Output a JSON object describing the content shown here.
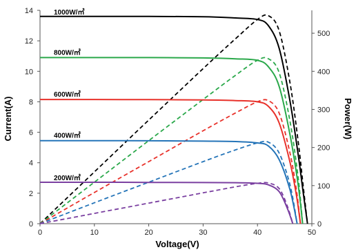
{
  "chart_data": {
    "type": "line",
    "xlabel": "Voltage(V)",
    "ylabel": "Current(A)",
    "y2label": "Power(W)",
    "xlim": [
      0,
      50
    ],
    "ylim": [
      0,
      14
    ],
    "y2lim": [
      0,
      560
    ],
    "xticks": [
      "0",
      "10",
      "20",
      "30",
      "40",
      "50"
    ],
    "yticks": [
      "0",
      "2",
      "4",
      "6",
      "8",
      "10",
      "12",
      "14"
    ],
    "y2ticks": [
      "0",
      "100",
      "200",
      "300",
      "400",
      "500"
    ],
    "grid": false,
    "legend": "inline labels on current curves",
    "series": [
      {
        "name": "1000W/㎡",
        "color": "#000000",
        "current": {
          "x": [
            0,
            10,
            20,
            30,
            36,
            40,
            42,
            44,
            46,
            47.5,
            48.5,
            49.2
          ],
          "y": [
            13.6,
            13.6,
            13.6,
            13.58,
            13.5,
            13.4,
            13.0,
            11.5,
            8.0,
            4.5,
            1.8,
            0
          ]
        },
        "power": {
          "x": [
            0,
            10,
            20,
            30,
            36,
            40,
            42,
            44,
            46,
            47.5,
            48.5,
            49.2
          ],
          "y": [
            0,
            136,
            272,
            407,
            486,
            536,
            546,
            506,
            368,
            214,
            87,
            0
          ]
        }
      },
      {
        "name": "800W/㎡",
        "color": "#2aa84a",
        "current": {
          "x": [
            0,
            10,
            20,
            30,
            36,
            40,
            42,
            44,
            46,
            47.5,
            48.3
          ],
          "y": [
            10.9,
            10.9,
            10.9,
            10.88,
            10.82,
            10.72,
            10.3,
            9.0,
            5.8,
            2.5,
            0
          ]
        },
        "power": {
          "x": [
            0,
            10,
            20,
            30,
            36,
            40,
            42,
            44,
            46,
            47.5,
            48.3
          ],
          "y": [
            0,
            109,
            218,
            326,
            390,
            429,
            433,
            396,
            267,
            119,
            0
          ]
        }
      },
      {
        "name": "600W/㎡",
        "color": "#e8312a",
        "current": {
          "x": [
            0,
            10,
            20,
            30,
            36,
            40,
            42,
            44,
            46,
            47.2,
            47.9
          ],
          "y": [
            8.15,
            8.15,
            8.14,
            8.12,
            8.08,
            8.0,
            7.7,
            6.6,
            4.0,
            1.8,
            0
          ]
        },
        "power": {
          "x": [
            0,
            10,
            20,
            30,
            36,
            40,
            42,
            44,
            46,
            47.2,
            47.9
          ],
          "y": [
            0,
            82,
            163,
            244,
            291,
            320,
            323,
            290,
            184,
            85,
            0
          ]
        }
      },
      {
        "name": "400W/㎡",
        "color": "#2474b8",
        "current": {
          "x": [
            0,
            10,
            20,
            30,
            36,
            40,
            42,
            44,
            46,
            47.3
          ],
          "y": [
            5.45,
            5.45,
            5.44,
            5.42,
            5.39,
            5.3,
            5.1,
            4.2,
            2.2,
            0
          ]
        },
        "power": {
          "x": [
            0,
            10,
            20,
            30,
            36,
            40,
            42,
            44,
            46,
            47.3
          ],
          "y": [
            0,
            55,
            109,
            163,
            194,
            212,
            214,
            185,
            101,
            0
          ]
        }
      },
      {
        "name": "200W/㎡",
        "color": "#7a3fa0",
        "current": {
          "x": [
            0,
            10,
            20,
            30,
            36,
            40,
            42,
            44,
            45.5,
            46.5
          ],
          "y": [
            2.72,
            2.72,
            2.71,
            2.7,
            2.69,
            2.65,
            2.55,
            2.1,
            1.0,
            0
          ]
        },
        "power": {
          "x": [
            0,
            10,
            20,
            30,
            36,
            40,
            42,
            44,
            45.5,
            46.5
          ],
          "y": [
            0,
            27,
            54,
            81,
            97,
            106,
            107,
            92,
            46,
            0
          ]
        }
      }
    ]
  }
}
